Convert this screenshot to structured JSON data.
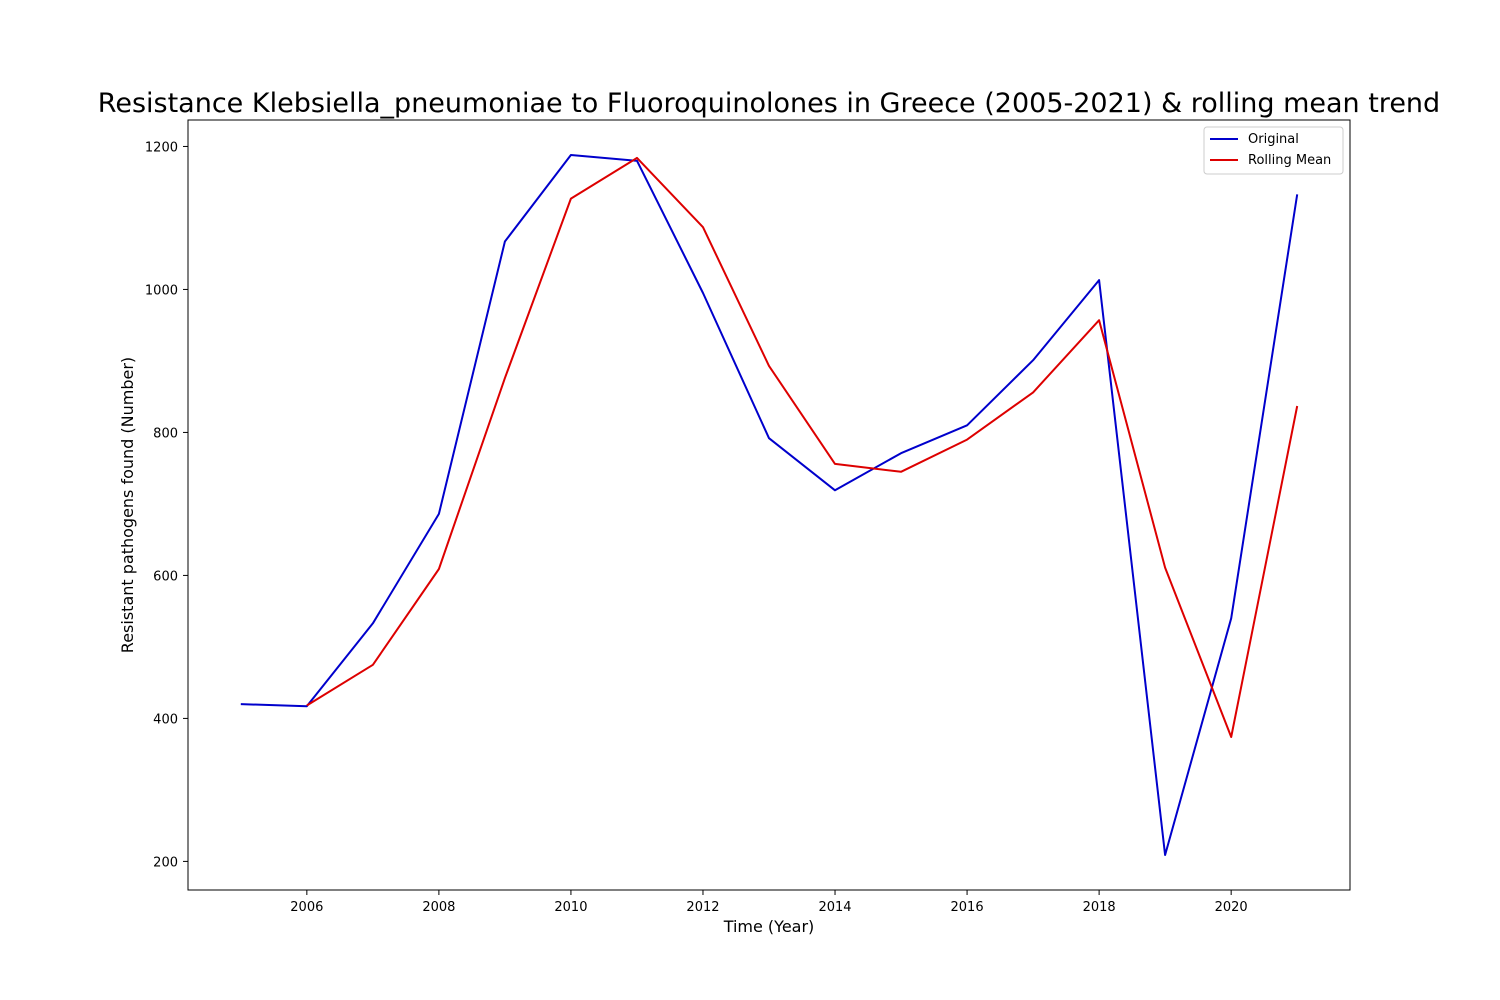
{
  "chart_data": {
    "type": "line",
    "title": "Resistance Klebsiella_pneumoniae to Fluoroquinolones in Greece (2005-2021) & rolling mean trend",
    "xlabel": "Time (Year)",
    "ylabel": "Resistant pathogens found (Number)",
    "x": [
      2005,
      2006,
      2007,
      2008,
      2009,
      2010,
      2011,
      2012,
      2013,
      2014,
      2015,
      2016,
      2017,
      2018,
      2019,
      2020,
      2021
    ],
    "xlim": [
      2004.2,
      2021.8
    ],
    "ylim": [
      160,
      1237
    ],
    "xticks": [
      2006,
      2008,
      2010,
      2012,
      2014,
      2016,
      2018,
      2020
    ],
    "yticks": [
      200,
      400,
      600,
      800,
      1000,
      1200
    ],
    "grid": false,
    "legend_position": "top-right",
    "series": [
      {
        "name": "Original",
        "color": "#0000cc",
        "values": [
          420,
          417,
          533,
          686,
          1067,
          1188,
          1180,
          995,
          792,
          719,
          771,
          810,
          901,
          1013,
          209,
          540,
          1133
        ]
      },
      {
        "name": "Rolling Mean",
        "color": "#dd0000",
        "values": [
          null,
          418,
          475,
          609,
          876,
          1127,
          1184,
          1087,
          893,
          756,
          745,
          790,
          856,
          957,
          611,
          374,
          837
        ]
      }
    ]
  }
}
